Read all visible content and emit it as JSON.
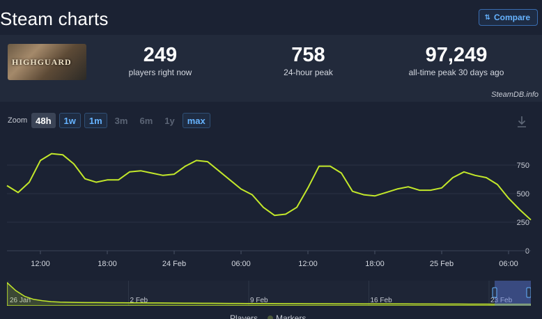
{
  "header": {
    "title": "Steam charts",
    "compare_label": "Compare"
  },
  "stats": {
    "current": {
      "value": "249",
      "label": "players right now"
    },
    "peak24": {
      "value": "758",
      "label": "24-hour peak"
    },
    "alltime": {
      "value": "97,249",
      "label": "all-time peak 30 days ago"
    },
    "game_logo_text": "HIGHGUARD",
    "brand": "SteamDB.info"
  },
  "zoom": {
    "label": "Zoom",
    "buttons": [
      {
        "label": "48h",
        "state": "active"
      },
      {
        "label": "1w",
        "state": "enabled"
      },
      {
        "label": "1m",
        "state": "enabled"
      },
      {
        "label": "3m",
        "state": "disabled"
      },
      {
        "label": "6m",
        "state": "disabled"
      },
      {
        "label": "1y",
        "state": "disabled"
      },
      {
        "label": "max",
        "state": "enabled"
      }
    ]
  },
  "legend": {
    "players": "Players",
    "markers": "Markers"
  },
  "colors": {
    "line": "#c3e82a",
    "grid": "#2b3344",
    "accent": "#66b3ff"
  },
  "chart_data": {
    "type": "line",
    "series": [
      {
        "name": "Players",
        "x": [
          0,
          1,
          2,
          3,
          4,
          5,
          6,
          7,
          8,
          9,
          10,
          11,
          12,
          13,
          14,
          15,
          16,
          17,
          18,
          19,
          20,
          21,
          22,
          23,
          24,
          25,
          26,
          27,
          28,
          29,
          30,
          31,
          32,
          33,
          34,
          35,
          36,
          37,
          38,
          39,
          40,
          41,
          42,
          43,
          44,
          45,
          46,
          47
        ],
        "values": [
          570,
          510,
          600,
          790,
          850,
          840,
          760,
          630,
          600,
          620,
          620,
          690,
          700,
          680,
          660,
          670,
          740,
          790,
          780,
          700,
          620,
          540,
          490,
          380,
          310,
          320,
          380,
          550,
          740,
          740,
          680,
          520,
          490,
          480,
          510,
          540,
          560,
          530,
          530,
          550,
          640,
          690,
          660,
          640,
          580,
          460,
          360,
          270
        ]
      }
    ],
    "x_ticks": [
      {
        "i": 3,
        "label": "12:00"
      },
      {
        "i": 9,
        "label": "18:00"
      },
      {
        "i": 15,
        "label": "24 Feb"
      },
      {
        "i": 21,
        "label": "06:00"
      },
      {
        "i": 27,
        "label": "12:00"
      },
      {
        "i": 33,
        "label": "18:00"
      },
      {
        "i": 39,
        "label": "25 Feb"
      },
      {
        "i": 45,
        "label": "06:00"
      }
    ],
    "y_ticks": [
      0,
      250,
      500,
      750
    ],
    "ylim": [
      0,
      1000
    ],
    "grid": true,
    "legend_placement": "bottom",
    "navigator": {
      "labels": [
        "26 Jan",
        "2 Feb",
        "9 Feb",
        "16 Feb",
        "23 Feb"
      ],
      "values": [
        95000,
        60000,
        35000,
        22000,
        16000,
        12000,
        10000,
        9000,
        8500,
        8000,
        7800,
        7600,
        7400,
        7200,
        7000,
        6800,
        6500,
        6300,
        6000,
        5800,
        5500,
        5200,
        5000,
        4800,
        4600,
        4400,
        4200,
        4000,
        3800,
        3600,
        3500,
        3400,
        3300,
        3200,
        3100,
        3000,
        2900,
        2800,
        2700,
        2600,
        2500,
        2400,
        2300,
        2200,
        2100,
        2000,
        1900,
        1800,
        1700,
        1600,
        1500,
        1400,
        1300,
        1200,
        1100,
        1000,
        950,
        900,
        850,
        800
      ]
    }
  }
}
